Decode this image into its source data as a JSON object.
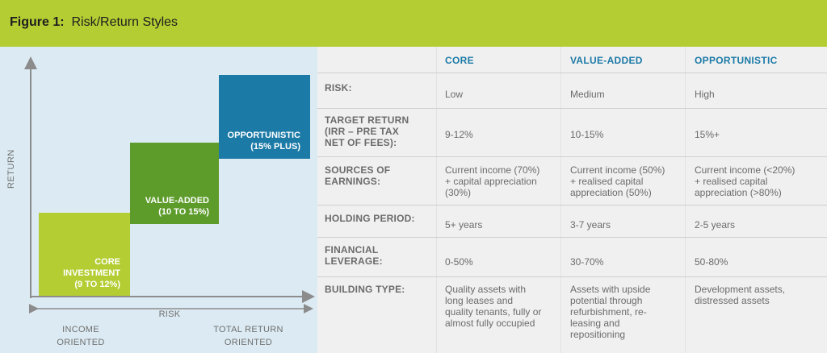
{
  "header": {
    "figure_label": "Figure 1:",
    "title": "Risk/Return Styles",
    "background_color": "#b4cd33"
  },
  "diagram": {
    "y_axis_label": "RETURN",
    "x_axis_label": "RISK",
    "x_left_label": [
      "INCOME",
      "ORIENTED"
    ],
    "x_right_label": [
      "TOTAL RETURN",
      "ORIENTED"
    ],
    "boxes": [
      {
        "name": "core",
        "lines": [
          "CORE",
          "INVESTMENT",
          "(9 TO 12%)"
        ],
        "color": "#b4cd33"
      },
      {
        "name": "value-added",
        "lines": [
          "VALUE-ADDED",
          "(10 TO 15%)"
        ],
        "color": "#5d9c2b"
      },
      {
        "name": "opportunistic",
        "lines": [
          "OPPORTUNISTIC",
          "(15% PLUS)"
        ],
        "color": "#1c7aa7"
      }
    ]
  },
  "table": {
    "columns": [
      "CORE",
      "VALUE-ADDED",
      "OPPORTUNISTIC"
    ],
    "rows": [
      {
        "label": [
          "RISK:"
        ],
        "values": [
          [
            "Low"
          ],
          [
            "Medium"
          ],
          [
            "High"
          ]
        ]
      },
      {
        "label": [
          "TARGET RETURN",
          "(IRR – PRE TAX",
          "NET OF FEES):"
        ],
        "values": [
          [
            "9-12%"
          ],
          [
            "10-15%"
          ],
          [
            "15%+"
          ]
        ]
      },
      {
        "label": [
          "SOURCES OF",
          "EARNINGS:"
        ],
        "values": [
          [
            "Current income (70%)",
            "+ capital appreciation",
            "(30%)"
          ],
          [
            "Current income (50%)",
            "+ realised capital",
            "appreciation (50%)"
          ],
          [
            "Current income (<20%)",
            "+ realised capital",
            "appreciation (>80%)"
          ]
        ]
      },
      {
        "label": [
          "HOLDING PERIOD:"
        ],
        "values": [
          [
            "5+ years"
          ],
          [
            "3-7 years"
          ],
          [
            "2-5 years"
          ]
        ]
      },
      {
        "label": [
          "FINANCIAL",
          "LEVERAGE:"
        ],
        "values": [
          [
            "0-50%"
          ],
          [
            "30-70%"
          ],
          [
            "50-80%"
          ]
        ]
      },
      {
        "label": [
          "BUILDING TYPE:"
        ],
        "values": [
          [
            "Quality assets with",
            "long leases and",
            "quality tenants, fully or",
            "almost fully occupied"
          ],
          [
            "Assets with upside",
            "potential through",
            "refurbishment, re-",
            "leasing and",
            "repositioning"
          ],
          [
            "Development assets,",
            "distressed assets"
          ]
        ]
      }
    ]
  }
}
